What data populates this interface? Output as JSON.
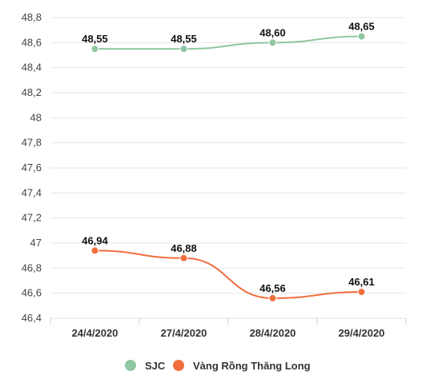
{
  "chart_data": {
    "type": "line",
    "categories": [
      "24/4/2020",
      "27/4/2020",
      "28/4/2020",
      "29/4/2020"
    ],
    "series": [
      {
        "name": "SJC",
        "values": [
          48.55,
          48.55,
          48.6,
          48.65
        ],
        "labels": [
          "48,55",
          "48,55",
          "48,60",
          "48,65"
        ],
        "color": "#8fc7a1"
      },
      {
        "name": "Vàng Rồng Thăng Long",
        "values": [
          46.94,
          46.88,
          46.56,
          46.61
        ],
        "labels": [
          "46,94",
          "46,88",
          "46,56",
          "46,61"
        ],
        "color": "#f26d3d"
      }
    ],
    "yticks": [
      46.4,
      46.6,
      46.8,
      47,
      47.2,
      47.4,
      47.6,
      47.8,
      48,
      48.2,
      48.4,
      48.6,
      48.8
    ],
    "ytick_labels": [
      "46,4",
      "46,6",
      "46,8",
      "47",
      "47,2",
      "47,4",
      "47,6",
      "47,8",
      "48",
      "48,2",
      "48,4",
      "48,6",
      "48,8"
    ],
    "ylim": [
      46.4,
      48.8
    ],
    "grid": true,
    "legend_position": "bottom"
  }
}
